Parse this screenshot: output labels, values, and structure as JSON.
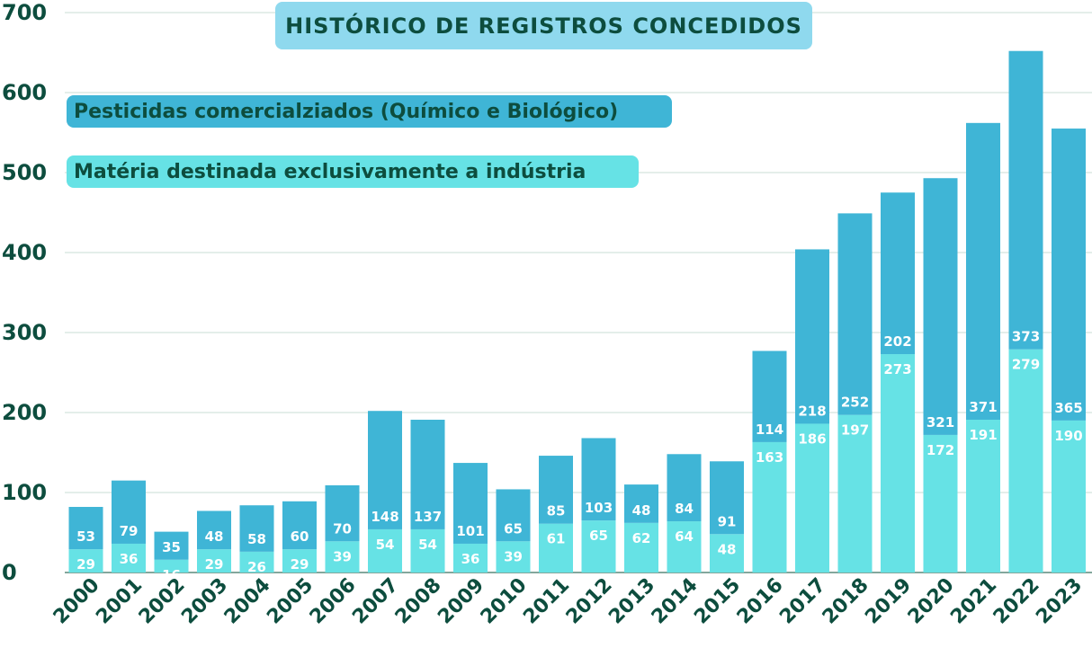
{
  "chart_data": {
    "type": "bar",
    "stacked": true,
    "title": "HISTÓRICO DE REGISTROS CONCEDIDOS",
    "categories": [
      "2000",
      "2001",
      "2002",
      "2003",
      "2004",
      "2005",
      "2006",
      "2007",
      "2008",
      "2009",
      "2010",
      "2011",
      "2012",
      "2013",
      "2014",
      "2015",
      "2016",
      "2017",
      "2018",
      "2019",
      "2020",
      "2021",
      "2022",
      "2023"
    ],
    "series": [
      {
        "name": "Matéria destinada exclusivamente a indústria",
        "color": "#66e2e5",
        "values": [
          29,
          36,
          16,
          29,
          26,
          29,
          39,
          54,
          54,
          36,
          39,
          61,
          65,
          62,
          64,
          48,
          163,
          186,
          197,
          273,
          172,
          191,
          279,
          190
        ]
      },
      {
        "name": "Pesticidas comercialziados (Químico e Biológico)",
        "color": "#3fb5d6",
        "values": [
          53,
          79,
          35,
          48,
          58,
          60,
          70,
          148,
          137,
          101,
          65,
          85,
          103,
          48,
          84,
          91,
          114,
          218,
          252,
          202,
          321,
          371,
          373,
          365
        ]
      }
    ],
    "y_ticks": [
      0,
      100,
      200,
      300,
      400,
      500,
      600,
      700
    ],
    "ylim": [
      0,
      700
    ],
    "grid": true,
    "legend_position": "top-left",
    "colors": {
      "text": "#0d4d3e",
      "grid": "#c9dcd6",
      "title_bg": "#8fd9ee"
    }
  }
}
